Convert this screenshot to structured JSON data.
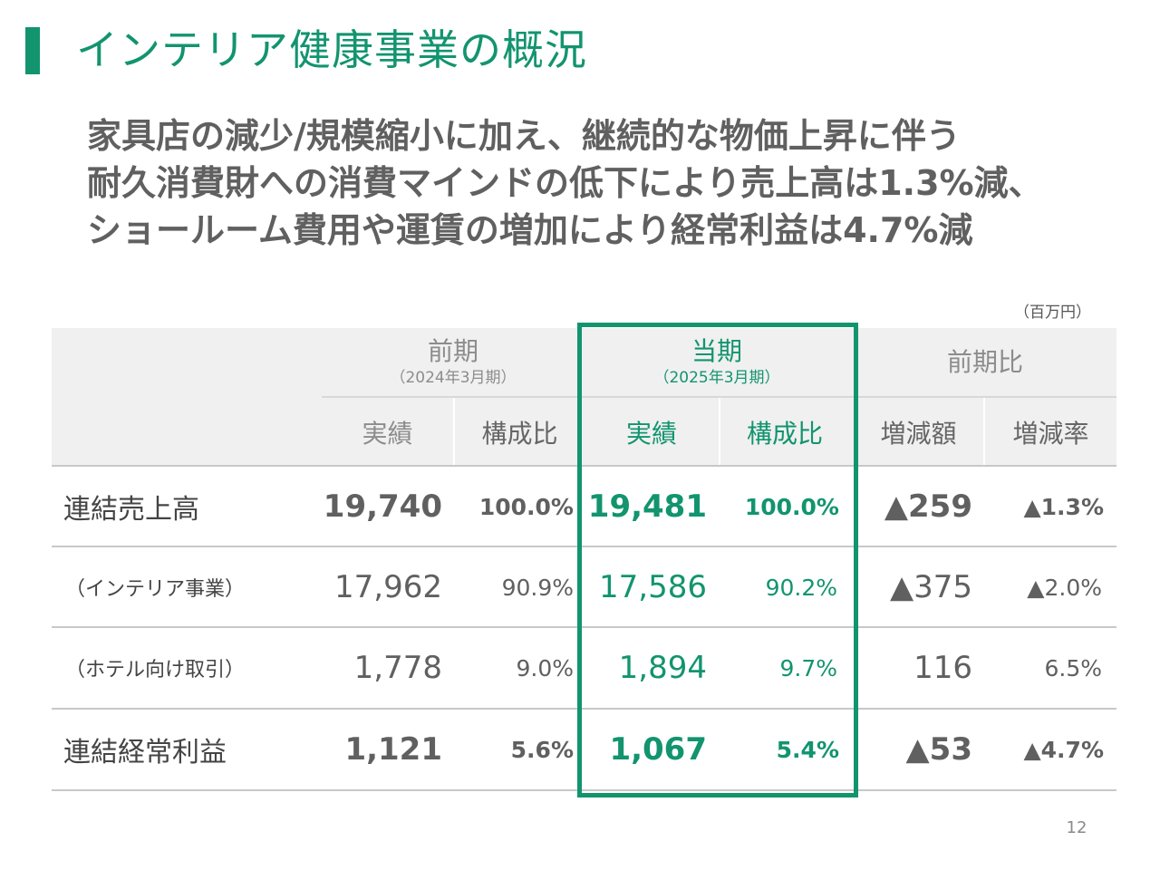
{
  "title": "インテリア健康事業の概況",
  "headline": [
    "家具店の減少/規模縮小に加え、継続的な物価上昇に伴う",
    "耐久消費財への消費マインドの低下により売上高は1.3%減、",
    "ショールーム費用や運賃の増加により経常利益は4.7%減"
  ],
  "unit": "（百万円）",
  "page_number": "12",
  "colors": {
    "accent": "#12946f",
    "header_bg": "#f0f0f0",
    "text": "#606060"
  },
  "table": {
    "groups": {
      "prev": {
        "label": "前期",
        "sub": "（2024年3月期）"
      },
      "curr": {
        "label": "当期",
        "sub": "（2025年3月期）"
      },
      "ratio": {
        "label": "前期比"
      }
    },
    "subheaders": {
      "actual": "実績",
      "composition": "構成比",
      "change_amount": "増減額",
      "change_rate": "増減率"
    },
    "rows": [
      {
        "label": "連結売上高",
        "prev_actual": "19,740",
        "prev_comp": "100.0%",
        "curr_actual": "19,481",
        "curr_comp": "100.0%",
        "change_amount": "▲259",
        "change_rate": "▲1.3%"
      },
      {
        "label": "（インテリア事業）",
        "prev_actual": "17,962",
        "prev_comp": "90.9%",
        "curr_actual": "17,586",
        "curr_comp": "90.2%",
        "change_amount": "▲375",
        "change_rate": "▲2.0%"
      },
      {
        "label": "（ホテル向け取引）",
        "prev_actual": "1,778",
        "prev_comp": "9.0%",
        "curr_actual": "1,894",
        "curr_comp": "9.7%",
        "change_amount": "116",
        "change_rate": "6.5%"
      },
      {
        "label": "連結経常利益",
        "prev_actual": "1,121",
        "prev_comp": "5.6%",
        "curr_actual": "1,067",
        "curr_comp": "5.4%",
        "change_amount": "▲53",
        "change_rate": "▲4.7%"
      }
    ]
  }
}
